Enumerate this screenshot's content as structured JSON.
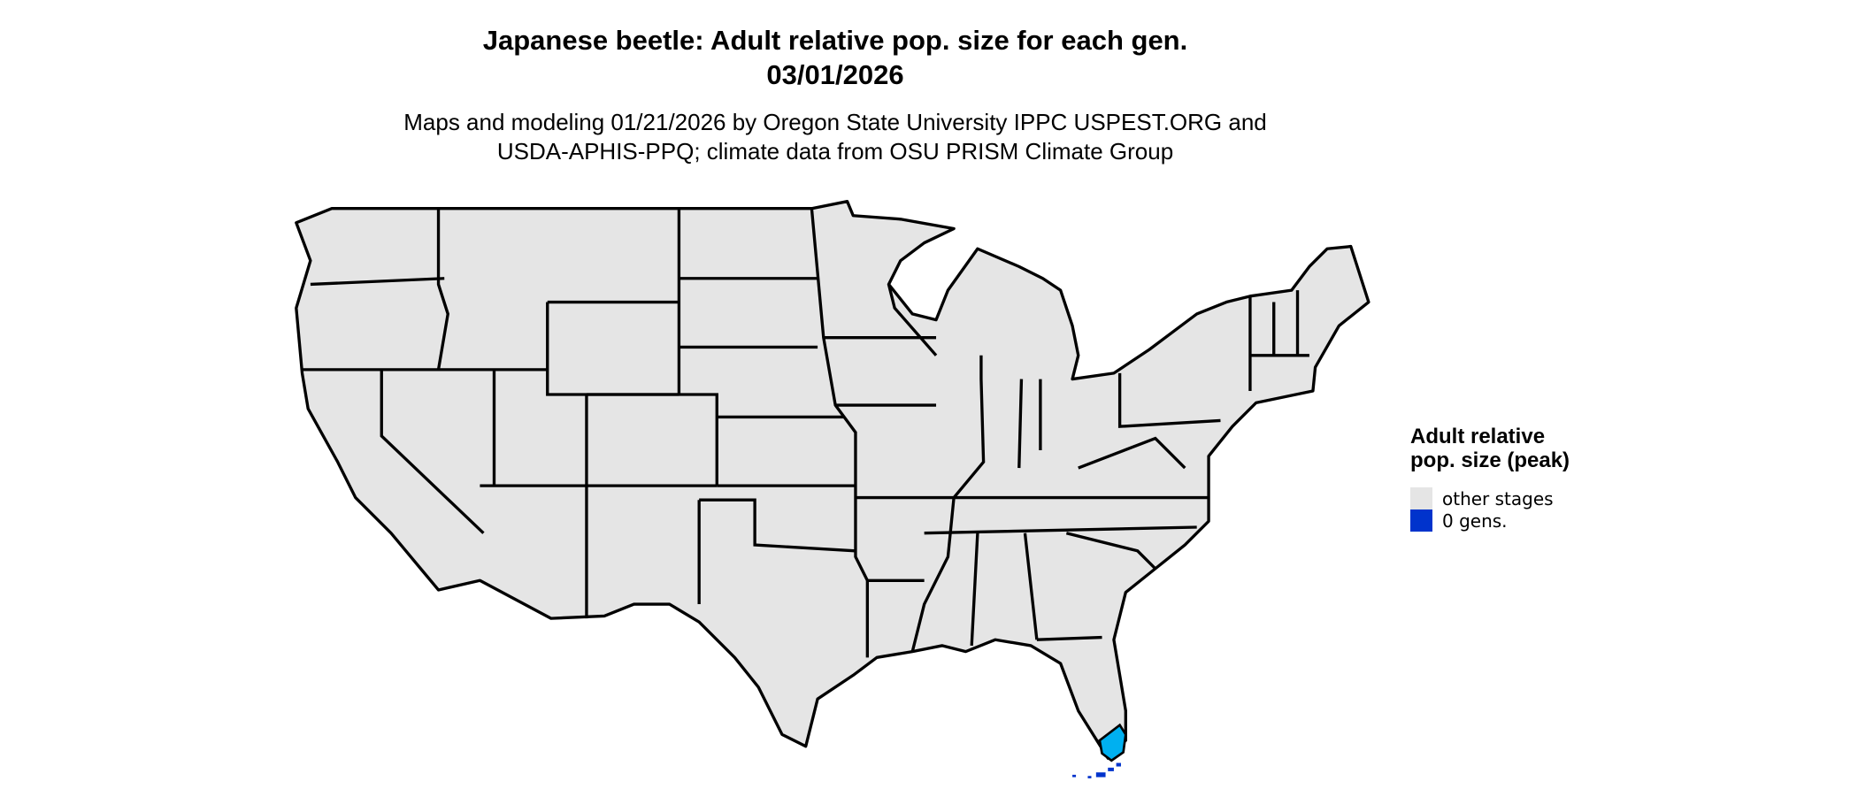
{
  "title": {
    "line1": "Japanese beetle: Adult relative pop. size for each gen.",
    "line2": "03/01/2026"
  },
  "subtitle": {
    "line1": "Maps and modeling 01/21/2026 by Oregon State University IPPC USPEST.ORG and",
    "line2": "USDA-APHIS-PPQ; climate data from OSU PRISM Climate Group"
  },
  "legend": {
    "title": "Adult relative pop. size (peak)",
    "items": [
      {
        "label": "other stages",
        "color": "#e5e5e5"
      },
      {
        "label": "0 gens.",
        "color": "#0033cc"
      }
    ]
  },
  "map": {
    "region": "Contiguous United States",
    "state_fill": "#e5e5e5",
    "border_color": "#000000",
    "highlight_colors": {
      "south_florida": "#00b0f0",
      "florida_keys": "#0033cc"
    }
  }
}
